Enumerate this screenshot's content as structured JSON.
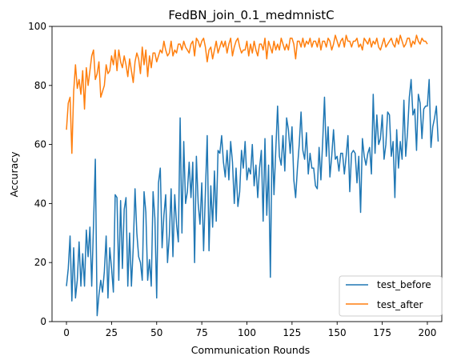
{
  "chart_data": {
    "type": "line",
    "title": "FedBN_join_0.1_medmnistC",
    "xlabel": "Communication Rounds",
    "ylabel": "Accuracy",
    "xlim": [
      -8,
      208
    ],
    "ylim": [
      0,
      100
    ],
    "xticks": [
      0,
      25,
      50,
      75,
      100,
      125,
      150,
      175,
      200
    ],
    "yticks": [
      0,
      20,
      40,
      60,
      80,
      100
    ],
    "grid": false,
    "legend_position": "lower-right",
    "series": [
      {
        "name": "test_before",
        "color": "#1f77b4",
        "x_start": 0,
        "x_step": 1,
        "values": [
          12,
          18,
          29,
          7,
          25,
          8,
          14,
          27,
          12,
          23,
          12,
          31,
          22,
          32,
          12,
          33,
          55,
          2,
          9,
          14,
          10,
          17,
          29,
          8,
          25,
          18,
          10,
          43,
          42,
          14,
          41,
          18,
          38,
          42,
          12,
          30,
          12,
          25,
          45,
          30,
          22,
          20,
          14,
          44,
          37,
          14,
          21,
          12,
          44,
          35,
          8,
          47,
          52,
          25,
          36,
          43,
          20,
          29,
          45,
          22,
          43,
          33,
          27,
          69,
          30,
          61,
          40,
          44,
          54,
          42,
          54,
          20,
          56,
          40,
          33,
          47,
          24,
          44,
          63,
          24,
          46,
          32,
          51,
          34,
          58,
          57,
          63,
          54,
          49,
          58,
          48,
          61,
          54,
          40,
          52,
          39,
          44,
          58,
          52,
          61,
          48,
          52,
          50,
          60,
          46,
          53,
          42,
          52,
          58,
          34,
          62,
          36,
          53,
          15,
          63,
          43,
          58,
          73,
          56,
          53,
          63,
          51,
          69,
          65,
          57,
          66,
          48,
          42,
          52,
          60,
          71,
          58,
          55,
          64,
          50,
          57,
          52,
          52,
          46,
          45,
          59,
          48,
          61,
          76,
          56,
          66,
          49,
          56,
          65,
          55,
          56,
          51,
          57,
          57,
          50,
          56,
          63,
          44,
          57,
          58,
          57,
          47,
          56,
          37,
          62,
          56,
          53,
          57,
          59,
          50,
          77,
          57,
          70,
          60,
          62,
          70,
          55,
          60,
          71,
          70,
          56,
          61,
          42,
          65,
          52,
          61,
          55,
          75,
          56,
          64,
          76,
          82,
          70,
          72,
          58,
          77,
          74,
          62,
          72,
          73,
          73,
          82,
          59,
          66,
          69,
          73,
          61
        ]
      },
      {
        "name": "test_after",
        "color": "#ff7f0e",
        "x_start": 0,
        "x_step": 1,
        "values": [
          65,
          74,
          76,
          57,
          78,
          87,
          79,
          82,
          77,
          85,
          72,
          86,
          80,
          85,
          90,
          92,
          82,
          84,
          88,
          76,
          78,
          80,
          87,
          84,
          85,
          90,
          87,
          92,
          85,
          92,
          88,
          86,
          90,
          87,
          83,
          89,
          85,
          81,
          88,
          91,
          89,
          84,
          93,
          87,
          92,
          83,
          90,
          86,
          91,
          91,
          88,
          90,
          92,
          91,
          95,
          92,
          90,
          91,
          95,
          90,
          92,
          91,
          94,
          94,
          92,
          95,
          93,
          92,
          91,
          94,
          95,
          90,
          96,
          95,
          93,
          95,
          96,
          93,
          88,
          92,
          93,
          89,
          92,
          95,
          91,
          93,
          95,
          93,
          95,
          91,
          94,
          96,
          90,
          93,
          95,
          96,
          93,
          91,
          92,
          92,
          95,
          90,
          94,
          91,
          95,
          92,
          90,
          94,
          94,
          92,
          96,
          89,
          95,
          93,
          91,
          95,
          92,
          94,
          92,
          96,
          94,
          92,
          94,
          92,
          96,
          96,
          94,
          89,
          95,
          95,
          93,
          96,
          93,
          95,
          94,
          96,
          93,
          95,
          95,
          93,
          96,
          92,
          95,
          95,
          93,
          96,
          95,
          92,
          94,
          97,
          95,
          93,
          95,
          96,
          93,
          97,
          95,
          95,
          93,
          95,
          95,
          96,
          93,
          94,
          92,
          96,
          95,
          94,
          96,
          93,
          95,
          94,
          96,
          93,
          92,
          94,
          96,
          93,
          94,
          95,
          96,
          94,
          93,
          96,
          94,
          97,
          95,
          93,
          94,
          96,
          96,
          93,
          95,
          94,
          97,
          95,
          94,
          96,
          95,
          95,
          94
        ]
      }
    ]
  }
}
